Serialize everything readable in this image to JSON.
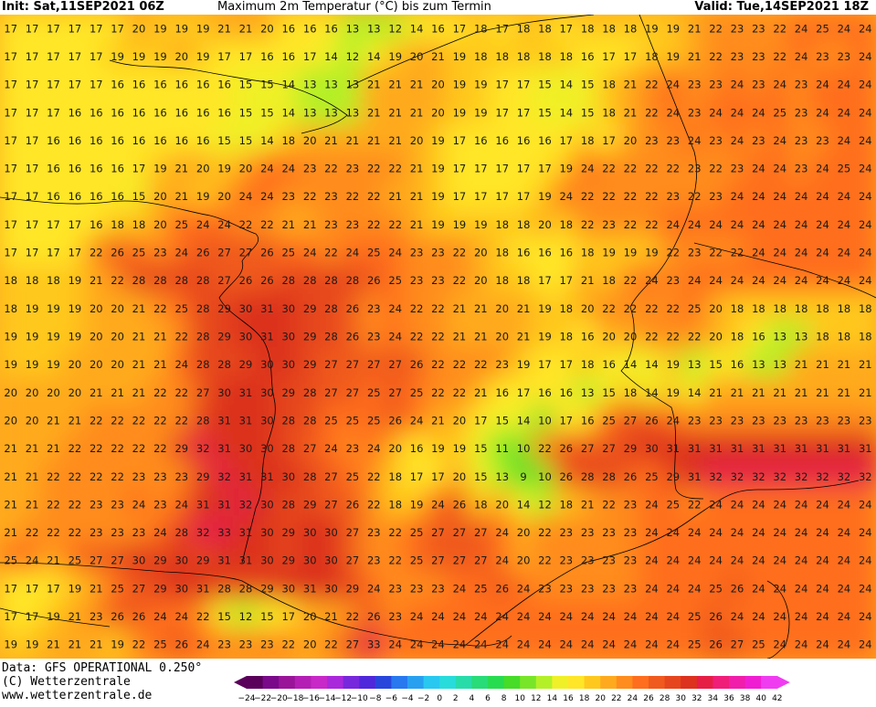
{
  "header": {
    "init": "Init: Sat,11SEP2021 06Z",
    "title": "Maximum 2m Temperatur (°C) bis zum Termin",
    "valid": "Valid: Tue,14SEP2021 18Z"
  },
  "footer": {
    "data_source": "Data: GFS OPERATIONAL 0.250°",
    "copyright": "(C) Wetterzentrale",
    "url": "www.wetterzentrale.de"
  },
  "legend": {
    "labels": [
      "−24",
      "−22",
      "−20",
      "−18",
      "−16",
      "−14",
      "−12",
      "−10",
      "−8",
      "−6",
      "−4",
      "−2",
      "0",
      "2",
      "4",
      "6",
      "8",
      "10",
      "12",
      "14",
      "16",
      "18",
      "20",
      "22",
      "24",
      "26",
      "28",
      "30",
      "32",
      "34",
      "36",
      "38",
      "40",
      "42"
    ],
    "colors": [
      "#5a005a",
      "#7a0a8a",
      "#9a149a",
      "#b41eb4",
      "#c828c8",
      "#aa28dc",
      "#7828dc",
      "#5028dc",
      "#2846dc",
      "#2878f0",
      "#28a0f0",
      "#28c8f0",
      "#28dcdc",
      "#28dcaa",
      "#28dc78",
      "#28dc50",
      "#46dc28",
      "#78e628",
      "#b4f028",
      "#f0f028",
      "#ffe628",
      "#ffc81e",
      "#ffaa1e",
      "#ff8c1e",
      "#ff6e1e",
      "#f05a1e",
      "#e6461e",
      "#dc321e",
      "#e61e46",
      "#f01e78",
      "#f01eaa",
      "#f01ed2",
      "#f03cf0"
    ]
  },
  "map": {
    "grid_rows": [
      [
        17,
        17,
        17,
        17,
        17,
        17,
        20,
        19,
        19,
        19,
        21,
        21,
        20,
        16,
        16,
        16,
        13,
        13,
        12,
        14,
        16,
        17,
        18,
        17,
        18,
        18,
        17,
        18,
        18,
        18,
        19,
        19,
        21,
        22,
        23,
        23,
        22,
        24,
        25,
        24,
        24
      ],
      [
        17,
        17,
        17,
        17,
        17,
        19,
        19,
        19,
        20,
        19,
        17,
        17,
        16,
        16,
        17,
        14,
        12,
        14,
        19,
        20,
        21,
        19,
        18,
        18,
        18,
        18,
        18,
        16,
        17,
        17,
        18,
        19,
        21,
        22,
        23,
        23,
        22,
        24,
        23,
        23,
        24
      ],
      [
        17,
        17,
        17,
        17,
        17,
        16,
        16,
        16,
        16,
        16,
        16,
        15,
        15,
        14,
        13,
        13,
        13,
        21,
        21,
        21,
        20,
        19,
        19,
        17,
        17,
        15,
        14,
        15,
        18,
        21,
        22,
        24,
        23,
        23,
        24,
        23,
        24,
        23,
        24,
        24,
        24
      ],
      [
        17,
        17,
        17,
        16,
        16,
        16,
        16,
        16,
        16,
        16,
        16,
        15,
        15,
        14,
        13,
        13,
        13,
        21,
        21,
        21,
        20,
        19,
        19,
        17,
        17,
        15,
        14,
        15,
        18,
        21,
        22,
        24,
        23,
        24,
        24,
        24,
        25,
        23,
        24,
        24,
        24
      ],
      [
        17,
        17,
        16,
        16,
        16,
        16,
        16,
        16,
        16,
        16,
        15,
        15,
        14,
        18,
        20,
        21,
        21,
        21,
        21,
        20,
        19,
        17,
        16,
        16,
        16,
        16,
        17,
        18,
        17,
        20,
        23,
        23,
        24,
        23,
        24,
        23,
        24,
        23,
        23,
        24,
        24
      ],
      [
        17,
        17,
        16,
        16,
        16,
        16,
        17,
        19,
        21,
        20,
        19,
        20,
        24,
        24,
        23,
        22,
        23,
        22,
        22,
        21,
        19,
        17,
        17,
        17,
        17,
        17,
        19,
        24,
        22,
        22,
        22,
        22,
        23,
        22,
        23,
        24,
        24,
        23,
        24,
        25,
        24
      ],
      [
        17,
        17,
        16,
        16,
        16,
        16,
        15,
        20,
        21,
        19,
        20,
        24,
        24,
        23,
        22,
        23,
        22,
        22,
        21,
        21,
        19,
        17,
        17,
        17,
        17,
        19,
        24,
        22,
        22,
        22,
        22,
        23,
        22,
        23,
        24,
        24,
        24,
        24,
        24,
        24,
        24
      ],
      [
        17,
        17,
        17,
        17,
        16,
        18,
        18,
        20,
        25,
        24,
        24,
        22,
        22,
        21,
        21,
        23,
        23,
        22,
        22,
        21,
        19,
        19,
        19,
        18,
        18,
        20,
        18,
        22,
        23,
        22,
        22,
        24,
        24,
        24,
        24,
        24,
        24,
        24,
        24,
        24,
        24
      ],
      [
        17,
        17,
        17,
        17,
        22,
        26,
        25,
        23,
        24,
        26,
        27,
        27,
        26,
        25,
        24,
        22,
        24,
        25,
        24,
        23,
        23,
        22,
        20,
        18,
        16,
        16,
        16,
        18,
        19,
        19,
        19,
        22,
        23,
        22,
        22,
        24,
        24,
        24,
        24,
        24,
        24
      ],
      [
        18,
        18,
        18,
        19,
        21,
        22,
        28,
        28,
        28,
        28,
        27,
        26,
        26,
        28,
        28,
        28,
        28,
        26,
        25,
        23,
        23,
        22,
        20,
        18,
        18,
        17,
        17,
        21,
        18,
        22,
        24,
        23,
        24,
        24,
        24,
        24,
        24,
        24,
        24,
        24,
        24
      ],
      [
        18,
        19,
        19,
        19,
        20,
        20,
        21,
        22,
        25,
        28,
        29,
        30,
        31,
        30,
        29,
        28,
        26,
        23,
        24,
        22,
        22,
        21,
        21,
        20,
        21,
        19,
        18,
        20,
        22,
        22,
        22,
        22,
        25,
        20,
        18,
        18,
        18,
        18,
        18,
        18,
        18
      ],
      [
        19,
        19,
        19,
        19,
        20,
        20,
        21,
        21,
        22,
        28,
        29,
        30,
        31,
        30,
        29,
        28,
        26,
        23,
        24,
        22,
        22,
        21,
        21,
        20,
        21,
        19,
        18,
        16,
        20,
        20,
        22,
        22,
        22,
        20,
        18,
        16,
        13,
        13,
        18,
        18,
        18
      ],
      [
        19,
        19,
        19,
        20,
        20,
        20,
        21,
        21,
        24,
        28,
        28,
        29,
        30,
        30,
        29,
        27,
        27,
        27,
        27,
        26,
        22,
        22,
        22,
        23,
        19,
        17,
        17,
        18,
        16,
        14,
        14,
        19,
        13,
        15,
        16,
        13,
        13,
        21,
        21,
        21,
        21
      ],
      [
        20,
        20,
        20,
        20,
        21,
        21,
        21,
        22,
        22,
        27,
        30,
        31,
        30,
        29,
        28,
        27,
        27,
        25,
        27,
        25,
        22,
        22,
        21,
        16,
        17,
        16,
        16,
        13,
        15,
        18,
        14,
        19,
        14,
        21,
        21,
        21,
        21,
        21,
        21,
        21,
        21
      ],
      [
        20,
        20,
        21,
        21,
        22,
        22,
        22,
        22,
        22,
        28,
        31,
        31,
        30,
        28,
        28,
        25,
        25,
        25,
        26,
        24,
        21,
        20,
        17,
        15,
        14,
        10,
        17,
        16,
        25,
        27,
        26,
        24,
        23,
        23,
        23,
        23,
        23,
        23,
        23,
        23,
        23
      ],
      [
        21,
        21,
        21,
        22,
        22,
        22,
        22,
        22,
        29,
        32,
        31,
        30,
        30,
        28,
        27,
        24,
        23,
        24,
        20,
        16,
        19,
        19,
        15,
        11,
        10,
        22,
        26,
        27,
        27,
        29,
        30,
        31,
        31,
        31,
        31,
        31,
        31,
        31,
        31,
        31,
        31
      ],
      [
        21,
        21,
        22,
        22,
        22,
        22,
        23,
        23,
        23,
        29,
        32,
        31,
        31,
        30,
        28,
        27,
        25,
        22,
        18,
        17,
        17,
        20,
        15,
        13,
        9,
        10,
        26,
        28,
        28,
        26,
        25,
        29,
        31,
        32,
        32,
        32,
        32,
        32,
        32,
        32,
        32
      ],
      [
        21,
        21,
        22,
        22,
        23,
        23,
        24,
        23,
        24,
        31,
        31,
        32,
        30,
        28,
        29,
        27,
        26,
        22,
        18,
        19,
        24,
        26,
        18,
        20,
        14,
        12,
        18,
        21,
        22,
        23,
        24,
        25,
        22,
        24,
        24,
        24,
        24,
        24,
        24,
        24,
        24
      ],
      [
        21,
        22,
        22,
        22,
        23,
        23,
        23,
        24,
        28,
        32,
        33,
        31,
        30,
        29,
        30,
        30,
        27,
        23,
        22,
        25,
        27,
        27,
        27,
        24,
        20,
        22,
        23,
        23,
        23,
        23,
        24,
        24,
        24,
        24,
        24,
        24,
        24,
        24,
        24,
        24,
        24
      ],
      [
        25,
        24,
        21,
        25,
        27,
        27,
        30,
        29,
        30,
        29,
        31,
        31,
        30,
        29,
        30,
        30,
        27,
        23,
        22,
        25,
        27,
        27,
        27,
        24,
        20,
        22,
        23,
        23,
        23,
        23,
        24,
        24,
        24,
        24,
        24,
        24,
        24,
        24,
        24,
        24,
        24
      ],
      [
        17,
        17,
        17,
        19,
        21,
        25,
        27,
        29,
        30,
        31,
        28,
        28,
        29,
        30,
        31,
        30,
        29,
        24,
        23,
        23,
        23,
        24,
        25,
        26,
        24,
        23,
        23,
        23,
        23,
        23,
        24,
        24,
        24,
        25,
        26,
        24,
        24,
        24,
        24,
        24,
        24
      ],
      [
        17,
        17,
        19,
        21,
        23,
        26,
        26,
        24,
        24,
        22,
        15,
        12,
        15,
        17,
        20,
        21,
        22,
        26,
        23,
        24,
        24,
        24,
        24,
        24,
        24,
        24,
        24,
        24,
        24,
        24,
        24,
        24,
        25,
        26,
        24,
        24,
        24,
        24,
        24,
        24,
        24
      ],
      [
        19,
        19,
        21,
        21,
        21,
        19,
        22,
        25,
        26,
        24,
        23,
        23,
        23,
        22,
        20,
        22,
        27,
        33,
        24,
        24,
        24,
        24,
        24,
        24,
        24,
        24,
        24,
        24,
        24,
        24,
        24,
        24,
        25,
        26,
        27,
        25,
        24,
        24,
        24,
        24,
        24
      ]
    ]
  }
}
